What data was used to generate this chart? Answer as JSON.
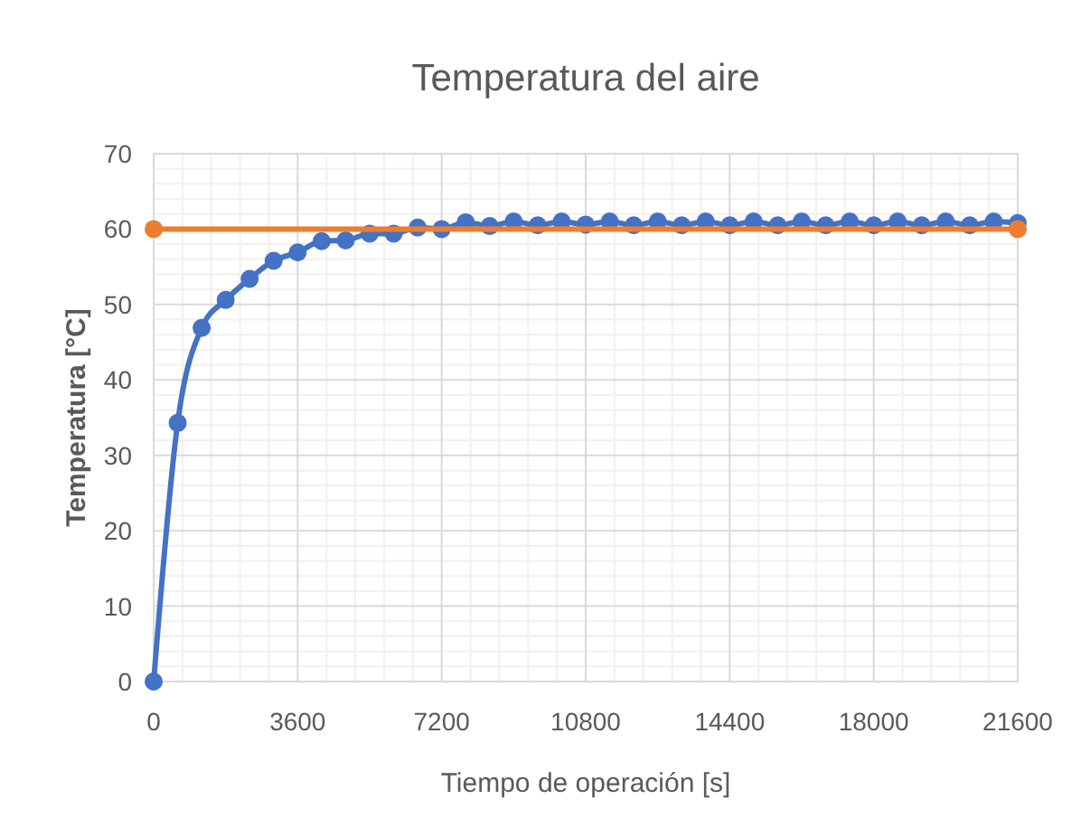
{
  "chart_data": {
    "type": "line",
    "title": "Temperatura del aire",
    "xlabel": "Tiempo de operación [s]",
    "ylabel": "Temperatura [°C]",
    "xlim": [
      0,
      21600
    ],
    "xticks": [
      0,
      3600,
      7200,
      10800,
      14400,
      18000,
      21600
    ],
    "ylim": [
      0,
      70
    ],
    "yticks": [
      0,
      10,
      20,
      30,
      40,
      50,
      60,
      70
    ],
    "grid": true,
    "marker": "circle",
    "line_style": "solid",
    "x": [
      0,
      600,
      1200,
      1800,
      2400,
      3000,
      3600,
      4200,
      4800,
      5400,
      6000,
      6600,
      7200,
      7800,
      8400,
      9000,
      9600,
      10200,
      10800,
      11400,
      12000,
      12600,
      13200,
      13800,
      14400,
      15000,
      15600,
      16200,
      16800,
      17400,
      18000,
      18600,
      19200,
      19800,
      20400,
      21000,
      21600
    ],
    "series": [
      {
        "color": "#4472c4",
        "values": [
          0,
          34.3,
          46.9,
          50.6,
          53.4,
          55.8,
          56.9,
          58.4,
          58.5,
          59.4,
          59.4,
          60.2,
          60,
          60.9,
          60.4,
          61,
          60.5,
          61,
          60.6,
          61,
          60.5,
          61,
          60.5,
          61,
          60.5,
          61,
          60.5,
          61,
          60.5,
          61,
          60.5,
          61,
          60.5,
          61,
          60.5,
          61,
          60.8
        ]
      },
      {
        "color": "#ed7d31",
        "x": [
          0,
          21600
        ],
        "values": [
          60,
          60
        ]
      }
    ]
  }
}
